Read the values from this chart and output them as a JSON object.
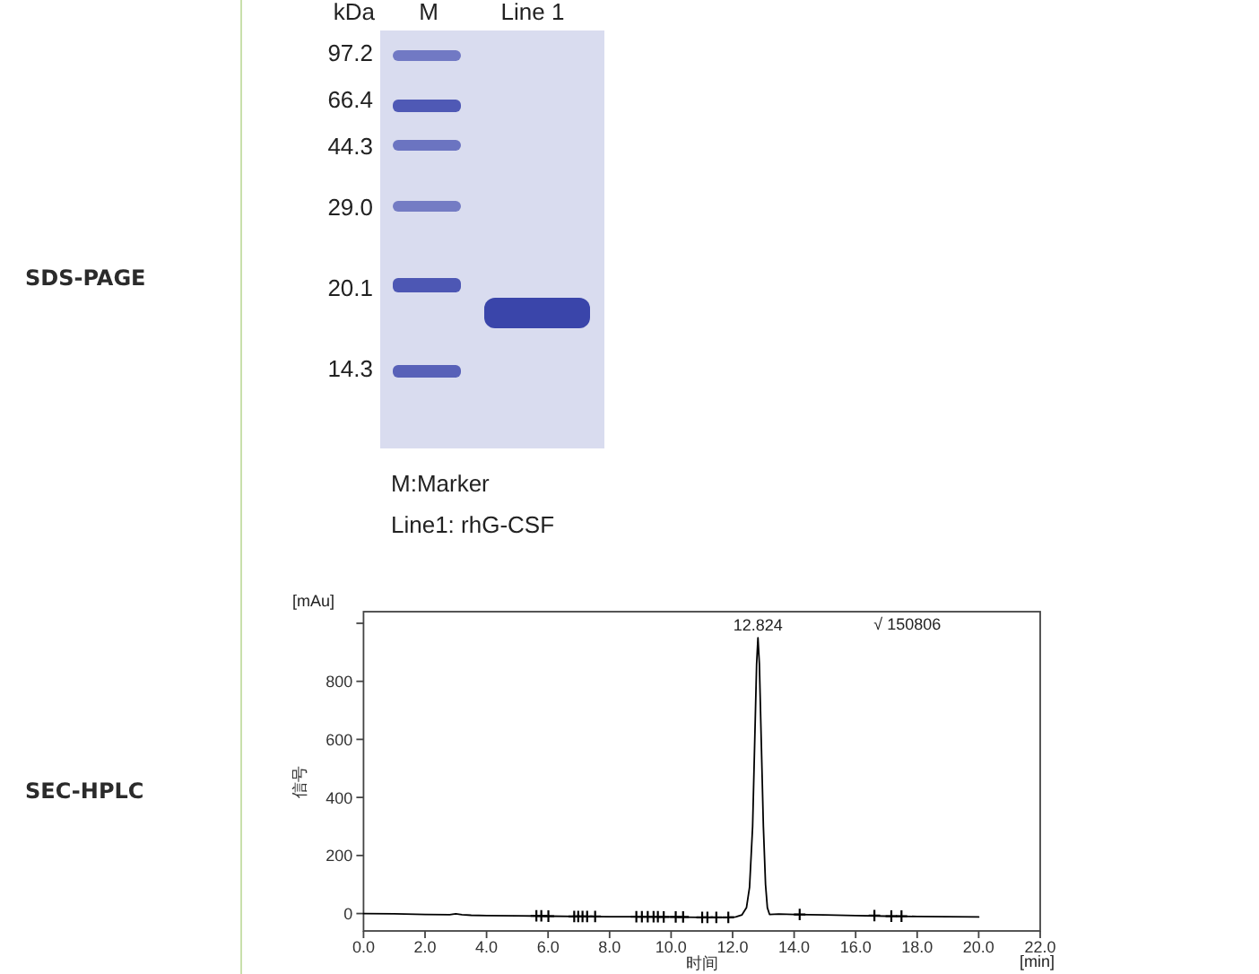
{
  "chart_data": [
    {
      "type": "other",
      "title": "SDS-PAGE",
      "annotations": [
        "kDa",
        "M",
        "Line 1",
        "97.2",
        "66.4",
        "44.3",
        "29.0",
        "20.1",
        "14.3",
        "M:Marker",
        "Line1: rhG-CSF"
      ]
    },
    {
      "type": "line",
      "xlabel": "时间",
      "ylabel": "信号",
      "xlim": [
        0,
        22
      ],
      "ylim": [
        -60,
        1040
      ],
      "xticks": [
        {
          "value": 0,
          "label": "0.0"
        },
        {
          "value": 2,
          "label": "2.0"
        },
        {
          "value": 4,
          "label": "4.0"
        },
        {
          "value": 6,
          "label": "6.0"
        },
        {
          "value": 8,
          "label": "8.0"
        },
        {
          "value": 10,
          "label": "10.0"
        },
        {
          "value": 12,
          "label": "12.0"
        },
        {
          "value": 14,
          "label": "14.0"
        },
        {
          "value": 16,
          "label": "16.0"
        },
        {
          "value": 18,
          "label": "18.0"
        },
        {
          "value": 20,
          "label": "20.0"
        },
        {
          "value": 22,
          "label": "22.0"
        }
      ],
      "yticks": [
        0,
        200,
        400,
        600,
        800,
        {
          "value": 1000,
          "label": null
        }
      ],
      "series": [
        {
          "color": "#000000",
          "x": [
            0,
            1,
            2,
            2.8,
            3.0,
            3.2,
            3.5,
            4,
            5,
            6,
            7,
            8,
            9,
            10,
            11,
            11.8,
            12.1,
            12.3,
            12.45,
            12.55,
            12.65,
            12.72,
            12.78,
            12.824,
            12.87,
            12.93,
            13.0,
            13.07,
            13.13,
            13.2,
            13.5,
            14,
            15,
            16,
            17,
            18,
            19,
            20
          ],
          "values": [
            0,
            -1,
            -3,
            -4,
            -1,
            -4,
            -6,
            -7,
            -8,
            -9,
            -10,
            -11,
            -11,
            -12,
            -13,
            -13,
            -12,
            -5,
            20,
            90,
            300,
            600,
            860,
            950,
            860,
            600,
            300,
            100,
            20,
            -3,
            -2,
            -3,
            -5,
            -7,
            -9,
            -10,
            -11,
            -12
          ]
        },
        {
          "type": "scatter",
          "marker": "cross",
          "color": "#000000",
          "x": [
            5.62,
            5.78,
            6.01,
            6.85,
            6.98,
            7.12,
            7.27,
            7.53,
            8.87,
            9.05,
            9.24,
            9.43,
            9.57,
            9.76,
            10.15,
            10.39,
            11.01,
            11.18,
            11.47,
            11.86,
            14.18,
            16.61,
            17.16,
            17.49
          ],
          "values": [
            -8,
            -8,
            -9,
            -10,
            -10,
            -10,
            -10,
            -10,
            -11,
            -11,
            -11,
            -11,
            -11,
            -12,
            -12,
            -12,
            -13,
            -13,
            -13,
            -13,
            -3,
            -7,
            -9,
            -9
          ]
        }
      ],
      "annotations": [
        {
          "text": "12.824",
          "x": 12.824,
          "y": 950
        },
        "√ 150806",
        "[mAu]",
        "[min]",
        "SEC-HPLC"
      ]
    }
  ]
}
